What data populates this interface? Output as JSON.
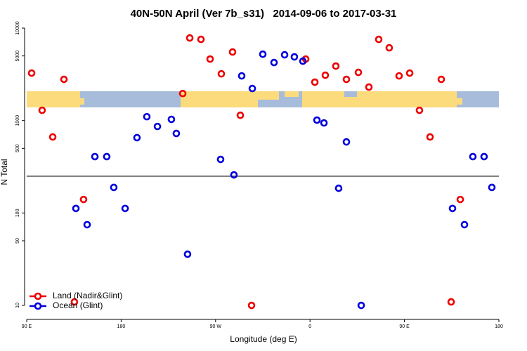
{
  "chart_data": {
    "type": "scatter",
    "title": "40N-50N April (Ver 7b_s31)   2014-09-06 to 2017-03-31",
    "x_label": "Longitude (deg E)",
    "y_label": "N Total",
    "log_y": true,
    "legend": "bottom-left",
    "hline": 250,
    "xlim": [
      90,
      540
    ],
    "xticks": [
      {
        "value": 90,
        "label": "90 E"
      },
      180,
      {
        "value": 270,
        "label": "90 W"
      },
      {
        "value": 360,
        "label": "0"
      },
      {
        "value": 450,
        "label": "90 E"
      },
      {
        "value": 540,
        "label": "180"
      }
    ],
    "ylim": [
      8,
      12000
    ],
    "yticks": [
      10,
      50,
      100,
      500,
      1000,
      5000,
      10000
    ],
    "series": [
      {
        "name": "Land (Nadir&Glint)",
        "color": "#ee0000",
        "x": [
          94.7,
          104.7,
          114.8,
          125.5,
          135.5,
          144.2,
          238.7,
          245.4,
          256.1,
          264.8,
          275.5,
          286.2,
          293.6,
          304.3,
          355.9,
          364.6,
          374.6,
          384.6,
          394.7,
          406.1,
          416.1,
          425.5,
          435.5,
          444.9,
          455.0,
          464.3,
          474.4,
          485.1,
          494.5,
          503.2
        ],
        "values": [
          3260,
          1290,
          664,
          2790,
          10.9,
          140,
          1960,
          7820,
          7550,
          4620,
          3200,
          5510,
          1140,
          10,
          4620,
          2600,
          3090,
          3880,
          2790,
          3320,
          2300,
          7550,
          6120,
          3040,
          3260,
          1290,
          664,
          2790,
          10.9,
          140
        ]
      },
      {
        "name": "Ocean (Glint)",
        "color": "#0000dd",
        "x": [
          136.9,
          147.6,
          155.0,
          166.3,
          173.0,
          183.8,
          195.1,
          204.5,
          214.6,
          227.9,
          232.6,
          243.3,
          274.8,
          287.5,
          294.9,
          305.0,
          315.0,
          325.7,
          335.8,
          345.1,
          353.2,
          366.6,
          373.3,
          387.3,
          394.7,
          408.8,
          495.8,
          507.2,
          515.2,
          525.9,
          533.3
        ],
        "values": [
          112,
          74.7,
          407,
          407,
          189,
          112,
          653,
          1100,
          863,
          1030,
          725,
          35.8,
          380,
          258,
          3040,
          2220,
          5220,
          4240,
          5140,
          4880,
          4390,
          1010,
          942,
          185,
          587,
          10,
          112,
          74.7,
          407,
          407,
          189
        ]
      }
    ]
  }
}
